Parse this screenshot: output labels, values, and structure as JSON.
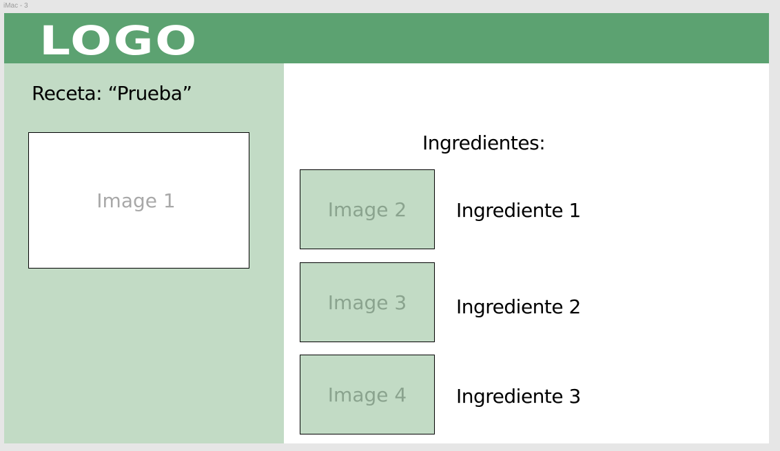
{
  "frame": {
    "label": "iMac - 3"
  },
  "header": {
    "logo": "LOGO"
  },
  "recipe": {
    "title": "Receta: “Prueba”",
    "main_image_label": "Image 1"
  },
  "ingredients": {
    "heading": "Ingredientes:",
    "items": [
      {
        "image_label": "Image 2",
        "name": "Ingrediente 1"
      },
      {
        "image_label": "Image 3",
        "name": "Ingrediente 2"
      },
      {
        "image_label": "Image 4",
        "name": "Ingrediente 3"
      }
    ]
  },
  "colors": {
    "header_green": "#5ca271",
    "panel_green": "#c2dbc5",
    "background": "#ffffff",
    "canvas": "#e6e6e6"
  }
}
